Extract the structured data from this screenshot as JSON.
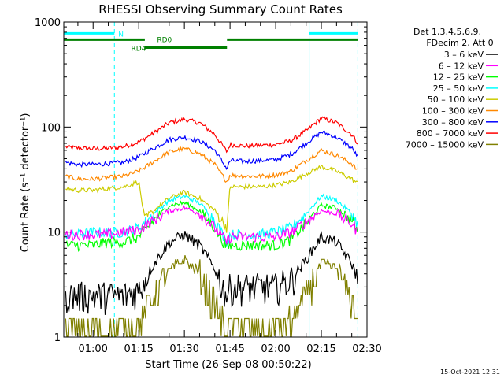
{
  "chart_data": {
    "type": "line",
    "title": "RHESSI Observing Summary Count Rates",
    "xlabel": "Start Time (26-Sep-08 00:50:22)",
    "ylabel": "Count Rate (s⁻¹ detector⁻¹)",
    "yscale": "log",
    "ylim": [
      1,
      1000
    ],
    "xlim": [
      "00:50:22",
      "02:30:00"
    ],
    "xticks": [
      "01:00",
      "01:15",
      "01:30",
      "01:45",
      "02:00",
      "02:15",
      "02:30"
    ],
    "yticks": [
      "1",
      "10",
      "100",
      "1000"
    ],
    "footer": "15-Oct-2021 12:31",
    "legend": {
      "position": "right",
      "header": [
        "Det 1,3,4,5,6,9,",
        "FDecim 2, Att 0"
      ],
      "entries": [
        {
          "label": "3 – 6 keV",
          "color": "#000000"
        },
        {
          "label": "6 – 12 keV",
          "color": "#ff00ff"
        },
        {
          "label": "12 – 25 keV",
          "color": "#00ff00"
        },
        {
          "label": "25 – 50 keV",
          "color": "#00ffff"
        },
        {
          "label": "50 – 100 keV",
          "color": "#cccc00"
        },
        {
          "label": "100 – 300 keV",
          "color": "#ff8800"
        },
        {
          "label": "300 – 800 keV",
          "color": "#0000ff"
        },
        {
          "label": "800 – 7000 keV",
          "color": "#ff0000"
        },
        {
          "label": "7000 – 15000 keV",
          "color": "#808000"
        }
      ]
    },
    "flags": [
      {
        "name": "N",
        "color": "#00ffff",
        "level": 780,
        "segments": [
          [
            "00:50:22",
            "01:07:00"
          ],
          [
            "02:11:00",
            "02:27:00"
          ]
        ]
      },
      {
        "name": "RD0",
        "color": "#008000",
        "level": 680,
        "segments": [
          [
            "00:50:22",
            "01:17:00"
          ],
          [
            "01:44:00",
            "02:27:00"
          ]
        ]
      },
      {
        "name": "RD4",
        "color": "#008000",
        "level": 570,
        "segments": [
          [
            "01:17:00",
            "01:44:00"
          ]
        ]
      }
    ],
    "vertical_markers": [
      {
        "time": "00:50:22",
        "style": "solid",
        "color": "#00ffff"
      },
      {
        "time": "01:07:00",
        "style": "dashed",
        "color": "#00ffff"
      },
      {
        "time": "02:11:00",
        "style": "solid",
        "color": "#00ffff"
      },
      {
        "time": "02:27:00",
        "style": "dashed",
        "color": "#00ffff"
      }
    ],
    "series": [
      {
        "color": "#ff0000",
        "x": [
          "00:51",
          "00:55",
          "01:00",
          "01:05",
          "01:10",
          "01:15",
          "01:20",
          "01:25",
          "01:30",
          "01:35",
          "01:40",
          "01:44",
          "01:45",
          "01:50",
          "01:55",
          "02:00",
          "02:05",
          "02:10",
          "02:15",
          "02:20",
          "02:25",
          "02:27"
        ],
        "values": [
          65,
          63,
          62,
          63,
          65,
          72,
          88,
          110,
          118,
          110,
          85,
          58,
          68,
          66,
          67,
          68,
          74,
          92,
          122,
          110,
          85,
          70
        ]
      },
      {
        "color": "#0000ff",
        "x": [
          "00:51",
          "00:55",
          "01:00",
          "01:05",
          "01:10",
          "01:15",
          "01:20",
          "01:25",
          "01:30",
          "01:35",
          "01:40",
          "01:44",
          "01:45",
          "01:50",
          "01:55",
          "02:00",
          "02:05",
          "02:10",
          "02:15",
          "02:20",
          "02:25",
          "02:27"
        ],
        "values": [
          46,
          44,
          44,
          45,
          46,
          52,
          63,
          76,
          80,
          74,
          60,
          40,
          48,
          47,
          48,
          49,
          55,
          70,
          90,
          80,
          63,
          52
        ]
      },
      {
        "color": "#ff8800",
        "x": [
          "00:51",
          "00:55",
          "01:00",
          "01:05",
          "01:10",
          "01:15",
          "01:20",
          "01:25",
          "01:30",
          "01:35",
          "01:40",
          "01:44",
          "01:45",
          "01:50",
          "01:55",
          "02:00",
          "02:05",
          "02:10",
          "02:15",
          "02:20",
          "02:25",
          "02:27"
        ],
        "values": [
          34,
          32,
          32,
          33,
          34,
          38,
          47,
          58,
          62,
          56,
          44,
          30,
          35,
          34,
          34,
          35,
          38,
          48,
          60,
          54,
          45,
          38
        ]
      },
      {
        "color": "#cccc00",
        "x": [
          "00:51",
          "00:55",
          "01:00",
          "01:05",
          "01:10",
          "01:15",
          "01:17",
          "01:20",
          "01:25",
          "01:30",
          "01:35",
          "01:40",
          "01:44",
          "01:45",
          "01:50",
          "01:55",
          "02:00",
          "02:05",
          "02:10",
          "02:15",
          "02:20",
          "02:25",
          "02:27"
        ],
        "values": [
          26,
          25,
          25,
          26,
          27,
          30,
          13,
          16,
          21,
          24,
          21,
          16,
          11,
          27,
          27,
          27,
          28,
          30,
          36,
          42,
          38,
          32,
          29
        ]
      },
      {
        "color": "#00ffff",
        "x": [
          "00:51",
          "00:55",
          "01:00",
          "01:05",
          "01:10",
          "01:15",
          "01:20",
          "01:25",
          "01:30",
          "01:35",
          "01:40",
          "01:44",
          "01:45",
          "01:50",
          "01:55",
          "02:00",
          "02:05",
          "02:10",
          "02:15",
          "02:20",
          "02:25",
          "02:27"
        ],
        "values": [
          9.5,
          9.5,
          10,
          10,
          10,
          11,
          15,
          20,
          22,
          19,
          13,
          8,
          9.5,
          9.5,
          9.5,
          10,
          11,
          15,
          22,
          20,
          15,
          12
        ]
      },
      {
        "color": "#00ff00",
        "x": [
          "00:51",
          "00:55",
          "01:00",
          "01:05",
          "01:10",
          "01:15",
          "01:20",
          "01:25",
          "01:30",
          "01:35",
          "01:40",
          "01:44",
          "01:45",
          "01:50",
          "01:55",
          "02:00",
          "02:05",
          "02:10",
          "02:15",
          "02:20",
          "02:25",
          "02:27"
        ],
        "values": [
          7.5,
          7.5,
          7.5,
          8,
          8,
          9,
          13,
          18,
          19,
          16,
          11,
          7,
          7.5,
          7.5,
          7.5,
          7.5,
          8.5,
          12,
          18,
          17,
          13,
          10
        ]
      },
      {
        "color": "#ff00ff",
        "x": [
          "00:51",
          "00:55",
          "01:00",
          "01:05",
          "01:10",
          "01:15",
          "01:20",
          "01:25",
          "01:30",
          "01:35",
          "01:40",
          "01:44",
          "01:45",
          "01:50",
          "01:55",
          "02:00",
          "02:05",
          "02:10",
          "02:15",
          "02:20",
          "02:25",
          "02:27"
        ],
        "values": [
          9.5,
          9.5,
          9.5,
          9.5,
          10,
          10.5,
          13,
          16,
          17,
          15,
          11,
          8,
          9,
          9,
          9,
          9,
          10,
          12.5,
          16,
          15,
          12,
          10
        ]
      },
      {
        "color": "#000000",
        "x": [
          "00:51",
          "00:55",
          "01:00",
          "01:05",
          "01:10",
          "01:15",
          "01:20",
          "01:25",
          "01:30",
          "01:35",
          "01:40",
          "01:44",
          "01:45",
          "01:50",
          "01:55",
          "02:00",
          "02:05",
          "02:10",
          "02:15",
          "02:20",
          "02:25",
          "02:27"
        ],
        "values": [
          2.5,
          2.5,
          2.5,
          2.5,
          2.5,
          2.8,
          5,
          8,
          9.5,
          7.5,
          4.5,
          2.5,
          3,
          3,
          3,
          3,
          3.5,
          5.5,
          9,
          8,
          5,
          3.5
        ]
      },
      {
        "color": "#808000",
        "x": [
          "00:51",
          "00:55",
          "01:00",
          "01:05",
          "01:10",
          "01:15",
          "01:20",
          "01:25",
          "01:30",
          "01:35",
          "01:40",
          "01:44",
          "01:45",
          "01:50",
          "01:55",
          "02:00",
          "02:05",
          "02:10",
          "02:15",
          "02:20",
          "02:25",
          "02:27"
        ],
        "values": [
          1.2,
          1.2,
          1.2,
          1.2,
          1.2,
          1.4,
          2.5,
          4.5,
          5.5,
          4,
          2,
          1.2,
          1.3,
          1.2,
          1.2,
          1.2,
          1.4,
          2.5,
          5,
          4.5,
          2.2,
          1.3
        ]
      }
    ]
  }
}
